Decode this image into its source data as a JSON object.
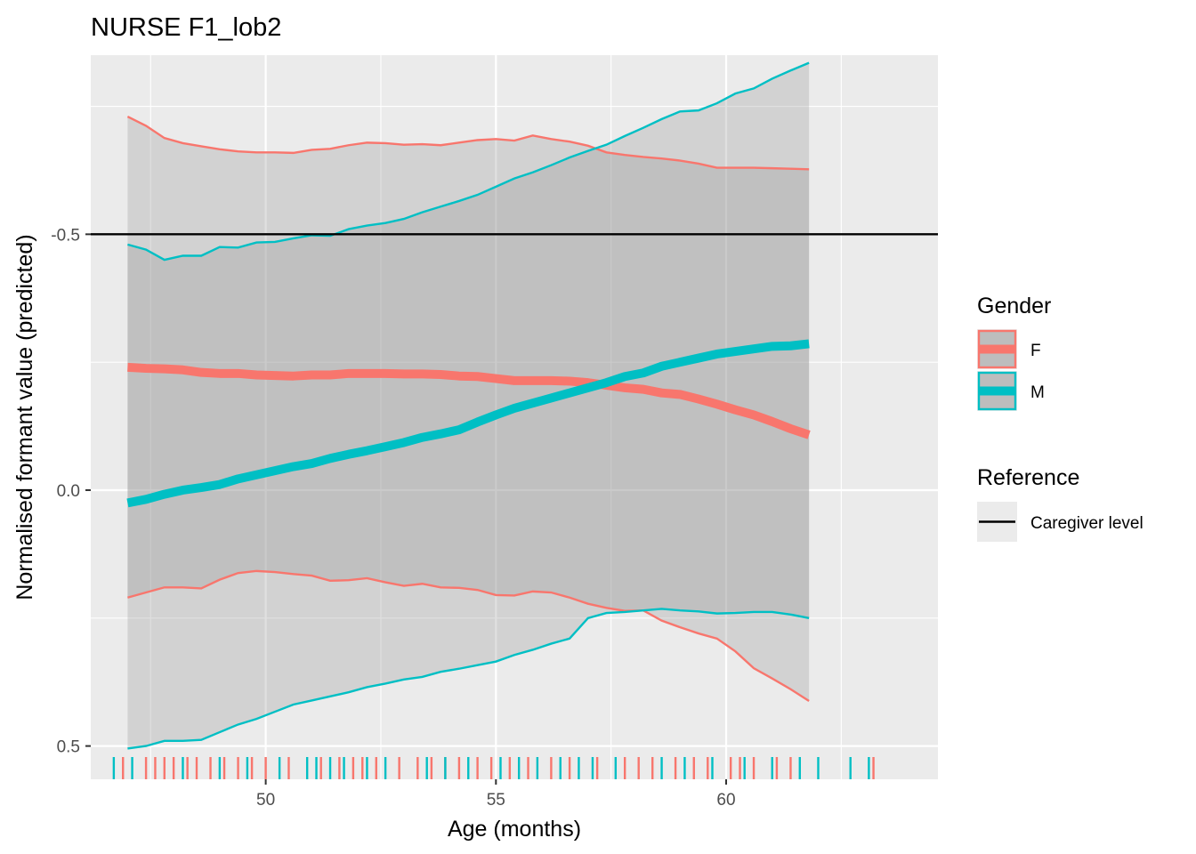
{
  "chart_data": {
    "type": "line",
    "title": "NURSE F1_lob2",
    "xlabel": "Age (months)",
    "ylabel": "Normalised formant value (predicted)",
    "xlim": [
      46.2,
      64.6
    ],
    "ylim": [
      0.565,
      -0.85
    ],
    "y_reversed": true,
    "grid": true,
    "x_ticks": [
      50,
      55,
      60
    ],
    "x_tick_labels": [
      "50",
      "55",
      "60"
    ],
    "y_ticks": [
      -0.5,
      0.0,
      0.5
    ],
    "y_tick_labels": [
      "-0.5",
      "0.0",
      "0.5"
    ],
    "x": [
      47.0,
      47.4,
      47.8,
      48.2,
      48.6,
      49.0,
      49.4,
      49.8,
      50.2,
      50.6,
      51.0,
      51.4,
      51.8,
      52.2,
      52.6,
      53.0,
      53.4,
      53.8,
      54.2,
      54.6,
      55.0,
      55.4,
      55.8,
      56.2,
      56.6,
      57.0,
      57.4,
      57.8,
      58.2,
      58.6,
      59.0,
      59.4,
      59.8,
      60.2,
      60.6,
      61.0,
      61.4,
      61.8
    ],
    "series": [
      {
        "name": "F",
        "color": "#F8766D",
        "values": [
          -0.24,
          -0.238,
          -0.237,
          -0.235,
          -0.23,
          -0.228,
          -0.228,
          -0.225,
          -0.224,
          -0.223,
          -0.225,
          -0.225,
          -0.228,
          -0.228,
          -0.228,
          -0.227,
          -0.227,
          -0.226,
          -0.223,
          -0.222,
          -0.218,
          -0.214,
          -0.214,
          -0.214,
          -0.213,
          -0.21,
          -0.205,
          -0.2,
          -0.197,
          -0.19,
          -0.187,
          -0.178,
          -0.168,
          -0.157,
          -0.147,
          -0.134,
          -0.12,
          -0.108
        ],
        "lower": [
          -0.73,
          -0.712,
          -0.688,
          -0.678,
          -0.672,
          -0.666,
          -0.662,
          -0.66,
          -0.66,
          -0.659,
          -0.665,
          -0.667,
          -0.674,
          -0.679,
          -0.678,
          -0.675,
          -0.676,
          -0.674,
          -0.679,
          -0.684,
          -0.686,
          -0.683,
          -0.693,
          -0.686,
          -0.681,
          -0.673,
          -0.66,
          -0.655,
          -0.651,
          -0.648,
          -0.644,
          -0.638,
          -0.63,
          -0.63,
          -0.63,
          -0.629,
          -0.628,
          -0.627
        ],
        "upper": [
          0.21,
          0.2,
          0.19,
          0.19,
          0.192,
          0.175,
          0.162,
          0.158,
          0.16,
          0.164,
          0.167,
          0.177,
          0.176,
          0.172,
          0.18,
          0.187,
          0.183,
          0.19,
          0.191,
          0.195,
          0.205,
          0.206,
          0.198,
          0.2,
          0.21,
          0.222,
          0.23,
          0.236,
          0.235,
          0.255,
          0.268,
          0.28,
          0.29,
          0.315,
          0.348,
          0.368,
          0.389,
          0.412
        ]
      },
      {
        "name": "M",
        "color": "#00BFC4",
        "values": [
          0.025,
          0.018,
          0.008,
          0.0,
          -0.005,
          -0.011,
          -0.022,
          -0.03,
          -0.038,
          -0.046,
          -0.052,
          -0.062,
          -0.07,
          -0.077,
          -0.085,
          -0.093,
          -0.103,
          -0.11,
          -0.118,
          -0.133,
          -0.147,
          -0.16,
          -0.17,
          -0.18,
          -0.19,
          -0.2,
          -0.21,
          -0.222,
          -0.229,
          -0.242,
          -0.25,
          -0.258,
          -0.266,
          -0.271,
          -0.276,
          -0.281,
          -0.282,
          -0.286
        ],
        "lower": [
          -0.48,
          -0.47,
          -0.45,
          -0.458,
          -0.458,
          -0.475,
          -0.474,
          -0.484,
          -0.485,
          -0.492,
          -0.498,
          -0.497,
          -0.51,
          -0.517,
          -0.522,
          -0.53,
          -0.543,
          -0.554,
          -0.565,
          -0.577,
          -0.593,
          -0.609,
          -0.621,
          -0.635,
          -0.65,
          -0.663,
          -0.675,
          -0.692,
          -0.708,
          -0.725,
          -0.74,
          -0.742,
          -0.756,
          -0.775,
          -0.785,
          -0.804,
          -0.82,
          -0.835
        ],
        "upper": [
          0.505,
          0.5,
          0.49,
          0.49,
          0.488,
          0.473,
          0.458,
          0.447,
          0.433,
          0.419,
          0.411,
          0.403,
          0.395,
          0.385,
          0.378,
          0.37,
          0.365,
          0.355,
          0.349,
          0.342,
          0.335,
          0.322,
          0.312,
          0.3,
          0.29,
          0.25,
          0.24,
          0.238,
          0.235,
          0.232,
          0.235,
          0.237,
          0.241,
          0.24,
          0.238,
          0.238,
          0.243,
          0.25
        ]
      }
    ],
    "reference_line": {
      "y": -0.5,
      "label": "Caregiver level",
      "color": "#000000"
    },
    "rug": {
      "F": [
        46.9,
        47.4,
        47.6,
        47.8,
        48.0,
        48.3,
        48.5,
        48.8,
        49.1,
        49.4,
        49.7,
        50.0,
        50.5,
        51.2,
        51.6,
        51.9,
        52.1,
        52.4,
        52.9,
        53.3,
        53.6,
        53.9,
        54.2,
        54.6,
        54.9,
        55.3,
        55.7,
        56.2,
        56.6,
        57.2,
        57.8,
        58.1,
        58.4,
        58.9,
        59.3,
        59.6,
        60.1,
        60.3,
        60.6,
        61.1,
        61.4,
        63.2
      ],
      "M": [
        46.7,
        47.1,
        48.2,
        49.0,
        49.6,
        50.3,
        50.9,
        51.1,
        51.4,
        51.7,
        52.2,
        52.6,
        53.5,
        53.9,
        54.4,
        55.1,
        55.5,
        55.9,
        56.4,
        56.8,
        57.1,
        57.6,
        58.6,
        59.1,
        59.7,
        60.4,
        61.0,
        61.6,
        62.0,
        62.7,
        63.1
      ]
    },
    "legend": {
      "placement": "right",
      "gender_title": "Gender",
      "gender_items": [
        {
          "label": "F",
          "color": "#F8766D"
        },
        {
          "label": "M",
          "color": "#00BFC4"
        }
      ],
      "reference_title": "Reference",
      "reference_items": [
        {
          "label": "Caregiver level",
          "color": "#000000"
        }
      ]
    }
  }
}
